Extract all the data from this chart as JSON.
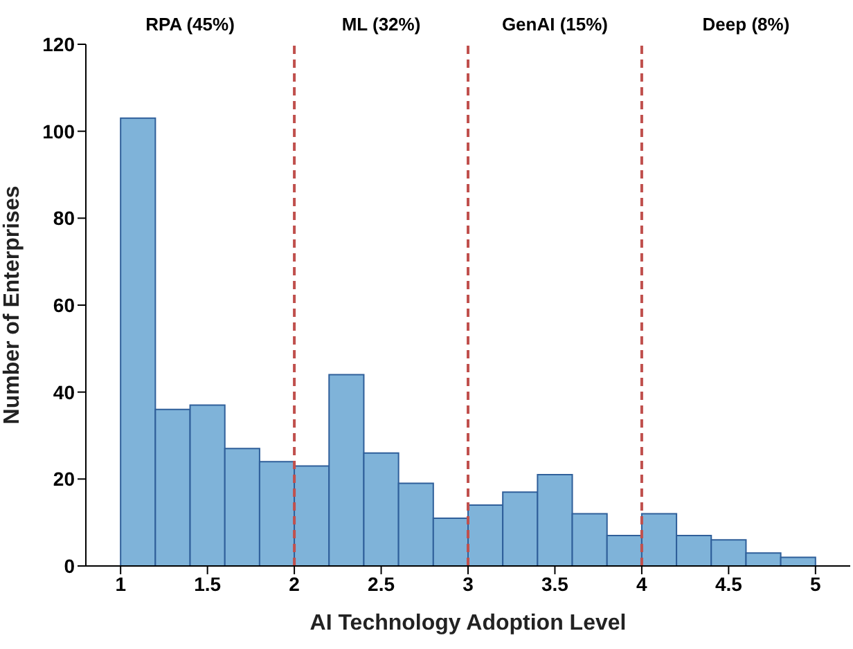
{
  "chart_data": {
    "type": "histogram",
    "xlabel": "AI Technology Adoption Level",
    "ylabel": "Number of Enterprises",
    "bins": [
      1,
      1.2,
      1.4,
      1.6,
      1.8,
      2,
      2.2,
      2.4,
      2.6,
      2.8,
      3,
      3.2,
      3.4,
      3.6,
      3.8,
      4,
      4.2,
      4.4,
      4.6,
      4.8,
      5
    ],
    "values": [
      103,
      36,
      37,
      27,
      24,
      23,
      44,
      26,
      19,
      11,
      14,
      17,
      21,
      12,
      7,
      12,
      7,
      6,
      3,
      2
    ],
    "color": "#7fb3d9",
    "xlim": [
      0.8,
      5.2
    ],
    "xticks": [
      1,
      1.5,
      2,
      2.5,
      3,
      3.5,
      4,
      4.5,
      5
    ],
    "ylim": [
      0,
      120
    ],
    "yticks": [
      0,
      20,
      40,
      60,
      80,
      100,
      120
    ],
    "ref_lines": [
      {
        "axis": "x",
        "value": 2,
        "color": "#c0504d",
        "line_style": "dashed"
      },
      {
        "axis": "x",
        "value": 3,
        "color": "#c0504d",
        "line_style": "dashed"
      },
      {
        "axis": "x",
        "value": 4,
        "color": "#c0504d",
        "line_style": "dashed"
      }
    ],
    "annotations": [
      "RPA (45%)",
      "ML (32%)",
      "GenAI (15%)",
      "Deep (8%)"
    ]
  }
}
